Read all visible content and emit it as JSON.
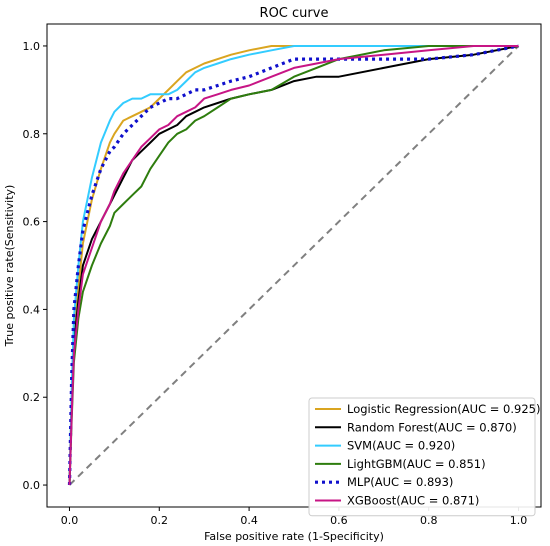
{
  "chart_data": {
    "type": "line",
    "title": "ROC curve",
    "xlabel": "False positive rate (1-Specificity)",
    "ylabel": "True positive rate(Sensitivity)",
    "xlim": [
      -0.05,
      1.05
    ],
    "ylim": [
      -0.05,
      1.05
    ],
    "xticks": [
      0.0,
      0.2,
      0.4,
      0.6,
      0.8,
      1.0
    ],
    "yticks": [
      0.0,
      0.2,
      0.4,
      0.6,
      0.8,
      1.0
    ],
    "xtick_labels": [
      "0.0",
      "0.2",
      "0.4",
      "0.6",
      "0.8",
      "1.0"
    ],
    "ytick_labels": [
      "0.0",
      "0.2",
      "0.4",
      "0.6",
      "0.8",
      "1.0"
    ],
    "grid": false,
    "legend_position": "bottom-right",
    "diagonal": {
      "x": [
        0,
        1
      ],
      "y": [
        0,
        1
      ],
      "color": "#808080",
      "style": "dashed"
    },
    "series": [
      {
        "name": "Logistic Regression(AUC = 0.925)",
        "color": "#DAA520",
        "style": "solid",
        "x": [
          0,
          0.005,
          0.01,
          0.02,
          0.03,
          0.05,
          0.07,
          0.09,
          0.1,
          0.12,
          0.14,
          0.16,
          0.18,
          0.2,
          0.22,
          0.24,
          0.26,
          0.28,
          0.3,
          0.33,
          0.36,
          0.4,
          0.45,
          0.5,
          0.55,
          0.6,
          0.7,
          0.8,
          0.9,
          1.0
        ],
        "y": [
          0,
          0.2,
          0.35,
          0.45,
          0.55,
          0.65,
          0.72,
          0.78,
          0.8,
          0.83,
          0.84,
          0.85,
          0.86,
          0.88,
          0.9,
          0.92,
          0.94,
          0.95,
          0.96,
          0.97,
          0.98,
          0.99,
          1.0,
          1.0,
          1.0,
          1.0,
          1.0,
          1.0,
          1.0,
          1.0
        ]
      },
      {
        "name": "Random Forest(AUC = 0.870)",
        "color": "#000000",
        "style": "solid",
        "x": [
          0,
          0.005,
          0.01,
          0.02,
          0.03,
          0.05,
          0.07,
          0.09,
          0.1,
          0.12,
          0.14,
          0.16,
          0.18,
          0.2,
          0.22,
          0.24,
          0.26,
          0.28,
          0.3,
          0.33,
          0.36,
          0.4,
          0.45,
          0.5,
          0.55,
          0.6,
          0.7,
          0.8,
          0.9,
          1.0
        ],
        "y": [
          0,
          0.18,
          0.32,
          0.42,
          0.5,
          0.56,
          0.6,
          0.64,
          0.66,
          0.7,
          0.74,
          0.76,
          0.78,
          0.8,
          0.81,
          0.82,
          0.84,
          0.85,
          0.86,
          0.87,
          0.88,
          0.89,
          0.9,
          0.92,
          0.93,
          0.93,
          0.95,
          0.97,
          0.98,
          1.0
        ]
      },
      {
        "name": "SVM(AUC = 0.920)",
        "color": "#33CCFF",
        "style": "solid",
        "x": [
          0,
          0.005,
          0.01,
          0.02,
          0.03,
          0.05,
          0.07,
          0.09,
          0.1,
          0.12,
          0.14,
          0.16,
          0.18,
          0.2,
          0.22,
          0.24,
          0.26,
          0.28,
          0.3,
          0.33,
          0.36,
          0.4,
          0.45,
          0.5,
          0.55,
          0.6,
          0.7,
          0.8,
          0.9,
          1.0
        ],
        "y": [
          0,
          0.22,
          0.38,
          0.5,
          0.6,
          0.7,
          0.78,
          0.83,
          0.85,
          0.87,
          0.88,
          0.88,
          0.89,
          0.89,
          0.89,
          0.9,
          0.92,
          0.94,
          0.95,
          0.96,
          0.97,
          0.98,
          0.99,
          1.0,
          1.0,
          1.0,
          1.0,
          1.0,
          1.0,
          1.0
        ]
      },
      {
        "name": "LightGBM(AUC = 0.851)",
        "color": "#2E7D0E",
        "style": "solid",
        "x": [
          0,
          0.005,
          0.01,
          0.02,
          0.03,
          0.05,
          0.07,
          0.09,
          0.1,
          0.12,
          0.14,
          0.16,
          0.18,
          0.2,
          0.22,
          0.24,
          0.26,
          0.28,
          0.3,
          0.33,
          0.36,
          0.4,
          0.45,
          0.5,
          0.55,
          0.6,
          0.7,
          0.8,
          0.9,
          1.0
        ],
        "y": [
          0,
          0.15,
          0.28,
          0.38,
          0.44,
          0.5,
          0.55,
          0.59,
          0.62,
          0.64,
          0.66,
          0.68,
          0.72,
          0.75,
          0.78,
          0.8,
          0.81,
          0.83,
          0.84,
          0.86,
          0.88,
          0.89,
          0.9,
          0.93,
          0.95,
          0.97,
          0.99,
          1.0,
          1.0,
          1.0
        ]
      },
      {
        "name": "MLP(AUC = 0.893)",
        "color": "#1010CC",
        "style": "dotted",
        "x": [
          0,
          0.005,
          0.01,
          0.02,
          0.03,
          0.05,
          0.07,
          0.09,
          0.1,
          0.12,
          0.14,
          0.16,
          0.18,
          0.2,
          0.22,
          0.24,
          0.26,
          0.28,
          0.3,
          0.33,
          0.36,
          0.4,
          0.45,
          0.5,
          0.55,
          0.6,
          0.7,
          0.8,
          0.9,
          1.0
        ],
        "y": [
          0,
          0.25,
          0.4,
          0.5,
          0.58,
          0.66,
          0.72,
          0.76,
          0.77,
          0.8,
          0.82,
          0.84,
          0.86,
          0.87,
          0.88,
          0.88,
          0.89,
          0.9,
          0.9,
          0.91,
          0.92,
          0.93,
          0.95,
          0.97,
          0.97,
          0.97,
          0.97,
          0.97,
          0.98,
          1.0
        ]
      },
      {
        "name": "XGBoost(AUC = 0.871)",
        "color": "#C71585",
        "style": "solid",
        "x": [
          0,
          0.005,
          0.01,
          0.02,
          0.03,
          0.05,
          0.07,
          0.09,
          0.1,
          0.12,
          0.14,
          0.16,
          0.18,
          0.2,
          0.22,
          0.24,
          0.26,
          0.28,
          0.3,
          0.33,
          0.36,
          0.4,
          0.45,
          0.5,
          0.55,
          0.6,
          0.7,
          0.8,
          0.9,
          1.0
        ],
        "y": [
          0,
          0.16,
          0.3,
          0.4,
          0.48,
          0.54,
          0.6,
          0.64,
          0.67,
          0.71,
          0.74,
          0.77,
          0.79,
          0.81,
          0.82,
          0.84,
          0.85,
          0.86,
          0.88,
          0.89,
          0.9,
          0.91,
          0.93,
          0.95,
          0.96,
          0.97,
          0.98,
          0.99,
          1.0,
          1.0
        ]
      }
    ]
  }
}
